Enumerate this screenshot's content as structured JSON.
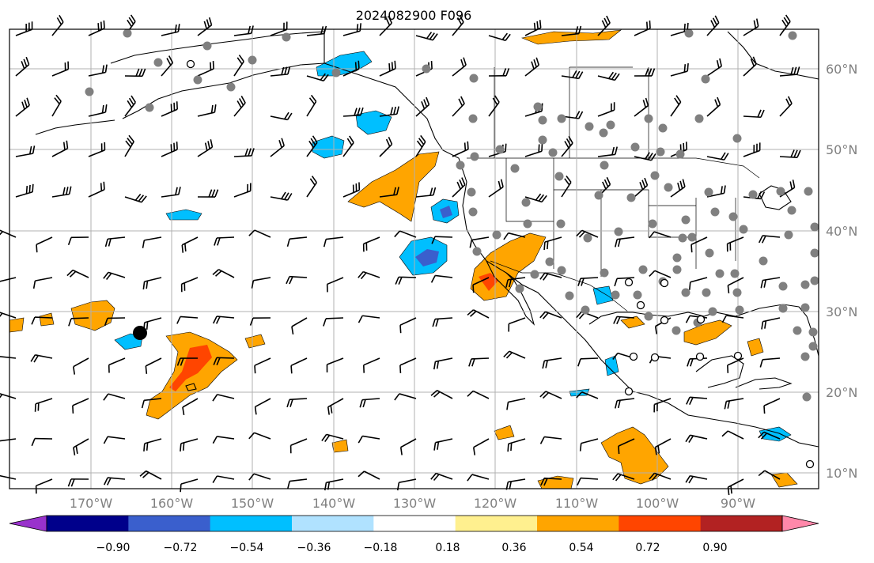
{
  "title": "2024082900 F096",
  "lat_labels": [
    "60°N",
    "50°N",
    "40°N",
    "30°N",
    "20°N",
    "10°N"
  ],
  "lon_labels": [
    "170°W",
    "160°W",
    "150°W",
    "140°W",
    "130°W",
    "120°W",
    "110°W",
    "100°W",
    "90°W"
  ],
  "colorbar": {
    "colors": [
      "#9932cc",
      "#00008b",
      "#3a5fcd",
      "#00bfff",
      "#b0e2ff",
      "#ffffff",
      "#fff08f",
      "#ffa500",
      "#ff4500",
      "#b22222",
      "#ff88aa"
    ],
    "ticks": [
      "−0.90",
      "−0.72",
      "−0.54",
      "−0.36",
      "−0.18",
      "0.18",
      "0.36",
      "0.54",
      "0.72",
      "0.90"
    ]
  },
  "colors": {
    "grid": "#b0b0b0",
    "coast": "#000000",
    "station_fill": "#808080",
    "marker": "#000000"
  },
  "icons": {
    "wind_barb": "wind-barb-icon",
    "station_dot": "station-dot-icon",
    "open_circle": "open-circle-icon",
    "location_marker": "location-marker-icon"
  }
}
